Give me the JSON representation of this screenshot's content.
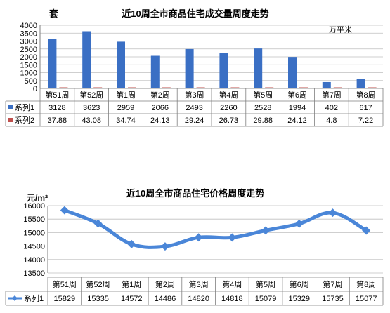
{
  "charts": [
    {
      "title": "近10周全市商品住宅成交量周度走势",
      "left_unit": "套",
      "right_unit": "万平米",
      "table_series_prefix": "系列"
    },
    {
      "title": "近10周全市商品住宅价格周度走势",
      "left_unit": "元/m²",
      "table_series_prefix": "系列"
    }
  ],
  "colors": {
    "series1_bar": "#3a6fc4",
    "series2_bar": "#c0504d",
    "line": "#4a86d8",
    "grid": "#bfbfbf",
    "axis": "#7f7f7f"
  },
  "chart_data": [
    {
      "type": "bar",
      "title": "近10周全市商品住宅成交量周度走势",
      "categories": [
        "第51周",
        "第52周",
        "第1周",
        "第2周",
        "第3周",
        "第4周",
        "第5周",
        "第6周",
        "第7周",
        "第8周"
      ],
      "series": [
        {
          "name": "系列1",
          "values": [
            3128,
            3623,
            2959,
            2066,
            2493,
            2260,
            2528,
            1994,
            402,
            617
          ],
          "display": [
            "3128",
            "3623",
            "2959",
            "2066",
            "2493",
            "2260",
            "2528",
            "1994",
            "402",
            "617"
          ]
        },
        {
          "name": "系列2",
          "values": [
            37.88,
            43.08,
            34.74,
            24.13,
            29.24,
            26.73,
            29.88,
            24.12,
            4.8,
            7.22
          ],
          "display": [
            "37.88",
            "43.08",
            "34.74",
            "24.13",
            "29.24",
            "26.73",
            "29.88",
            "24.12",
            "4.8",
            "7.22"
          ]
        }
      ],
      "ylabel": "套",
      "ylim": [
        0,
        4000
      ],
      "yticks": [
        "0",
        "500",
        "1000",
        "1500",
        "2000",
        "2500",
        "3000",
        "3500",
        "4000"
      ],
      "legend": "data table"
    },
    {
      "type": "line",
      "title": "近10周全市商品住宅价格周度走势",
      "categories": [
        "第51周",
        "第52周",
        "第1周",
        "第2周",
        "第3周",
        "第4周",
        "第5周",
        "第6周",
        "第7周",
        "第8周"
      ],
      "series": [
        {
          "name": "系列1",
          "values": [
            15829,
            15335,
            14572,
            14486,
            14820,
            14818,
            15079,
            15329,
            15735,
            15077
          ],
          "display": [
            "15829",
            "15335",
            "14572",
            "14486",
            "14820",
            "14818",
            "15079",
            "15329",
            "15735",
            "15077"
          ]
        }
      ],
      "ylabel": "元/m²",
      "ylim": [
        13500,
        16000
      ],
      "yticks": [
        "13500",
        "14000",
        "14500",
        "15000",
        "15500",
        "16000"
      ],
      "legend": "data table"
    }
  ]
}
